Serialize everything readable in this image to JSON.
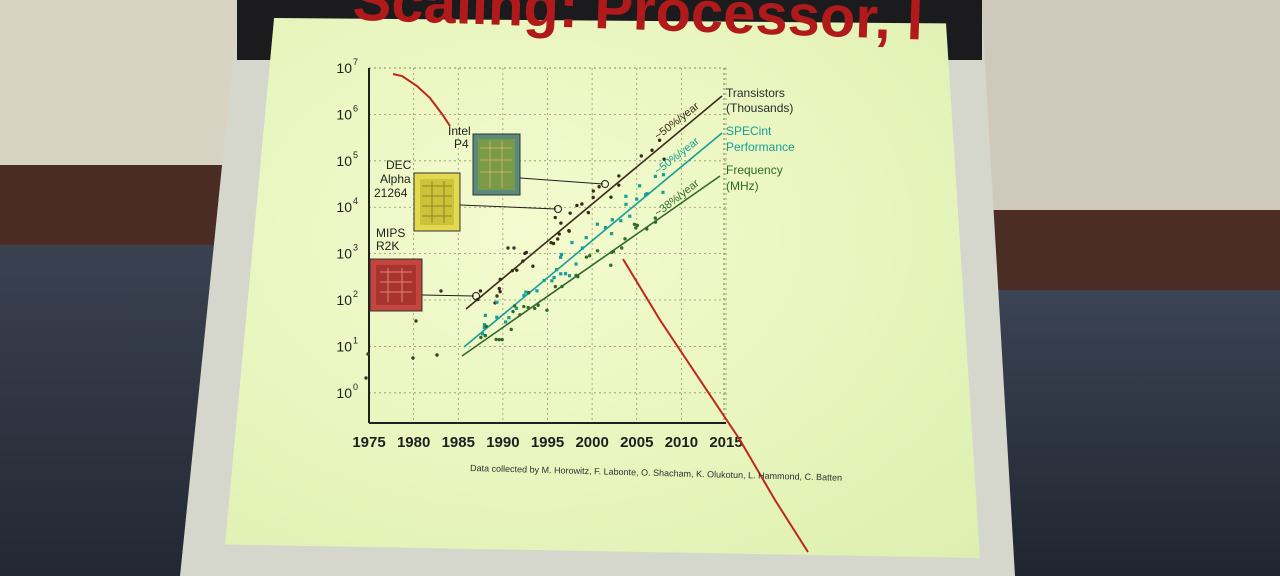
{
  "slide": {
    "title": "Scaling: Processor, I",
    "credit": "Data collected by M. Horowitz, F. Labonte, O. Shacham, K. Olukotun, L. Hammond, C. Batten"
  },
  "chart_data": {
    "type": "scatter",
    "xlim": [
      1975,
      2015
    ],
    "ylog": true,
    "x_ticks": [
      "1975",
      "1980",
      "1985",
      "1990",
      "1995",
      "2000",
      "2005",
      "2010",
      "2015"
    ],
    "y_ticks": [
      {
        "exp": "0",
        "base": "10"
      },
      {
        "exp": "1",
        "base": "10"
      },
      {
        "exp": "2",
        "base": "10"
      },
      {
        "exp": "3",
        "base": "10"
      },
      {
        "exp": "4",
        "base": "10"
      },
      {
        "exp": "5",
        "base": "10"
      },
      {
        "exp": "6",
        "base": "10"
      },
      {
        "exp": "7",
        "base": "10"
      }
    ],
    "series": [
      {
        "name": "Transistors (Thousands)",
        "label_lines": [
          "Transistors",
          "(Thousands)"
        ],
        "trend": "~50%/year",
        "color": "#3a2a1c"
      },
      {
        "name": "SPECint Performance",
        "label_lines": [
          "SPECint",
          "Performance"
        ],
        "trend": "~50%/year",
        "color": "#179e98"
      },
      {
        "name": "Frequency (MHz)",
        "label_lines": [
          "Frequency",
          "(MHz)"
        ],
        "trend": "~38%/year",
        "color": "#2f6a2a"
      }
    ],
    "chips": [
      {
        "label_lines": [
          "MIPS",
          "R2K"
        ]
      },
      {
        "label_lines": [
          "DEC",
          "Alpha",
          "21264"
        ]
      },
      {
        "label_lines": [
          "Intel",
          "P4"
        ]
      }
    ]
  },
  "colors": {
    "slide_bg": "#eaf5c0",
    "title": "#b01a1a",
    "annotation": "#c0261a",
    "projector_bar": "#1b1b1d"
  }
}
